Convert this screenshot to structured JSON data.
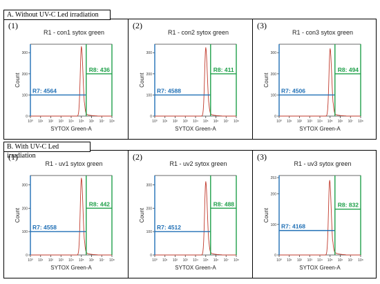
{
  "sections": [
    {
      "label": "A. Without UV-C Led irradiation"
    },
    {
      "label": "B. With UV-C Led irradiation"
    }
  ],
  "colors": {
    "curve": "#c0392b",
    "r7": "#1f6fb5",
    "r8": "#1fa04a"
  },
  "chart_data": [
    {
      "type": "area",
      "panel_number": "(1)",
      "title": "R1 - con1 sytox green",
      "xlabel": "SYTOX Green-A",
      "ylabel": "Count",
      "x_scale": "log",
      "xlim": [
        1,
        100000000
      ],
      "ylim": [
        0,
        340
      ],
      "yticks": [
        "0",
        "100",
        "200",
        "300"
      ],
      "xticks": [
        "10⁰",
        "10¹",
        "10²",
        "10³",
        "10⁴",
        "10⁵",
        "10⁶",
        "10⁷",
        "10⁸"
      ],
      "peak_x": 100000,
      "peak_y": 330,
      "gate_x": 300000,
      "regions": [
        {
          "name": "R7",
          "label": "R7: 4564",
          "value": 4564,
          "level": 100
        },
        {
          "name": "R8",
          "label": "R8: 436",
          "value": 436,
          "level": 200
        }
      ]
    },
    {
      "type": "area",
      "panel_number": "(2)",
      "title": "R1 - con2 sytox green",
      "xlabel": "SYTOX Green-A",
      "ylabel": "Count",
      "x_scale": "log",
      "xlim": [
        1,
        100000000
      ],
      "ylim": [
        0,
        340
      ],
      "yticks": [
        "0",
        "100",
        "200",
        "300"
      ],
      "xticks": [
        "10⁰",
        "10¹",
        "10²",
        "10³",
        "10⁴",
        "10⁵",
        "10⁶",
        "10⁷",
        "10⁸"
      ],
      "peak_x": 100000,
      "peak_y": 325,
      "gate_x": 300000,
      "regions": [
        {
          "name": "R7",
          "label": "R7: 4588",
          "value": 4588,
          "level": 100
        },
        {
          "name": "R8",
          "label": "R8: 411",
          "value": 411,
          "level": 200
        }
      ]
    },
    {
      "type": "area",
      "panel_number": "(3)",
      "title": "R1 - con3 sytox green",
      "xlabel": "SYTOX Green-A",
      "ylabel": "Count",
      "x_scale": "log",
      "xlim": [
        1,
        100000000
      ],
      "ylim": [
        0,
        340
      ],
      "yticks": [
        "0",
        "100",
        "200",
        "300"
      ],
      "xticks": [
        "10⁰",
        "10¹",
        "10²",
        "10³",
        "10⁴",
        "10⁵",
        "10⁶",
        "10⁷",
        "10⁸"
      ],
      "peak_x": 100000,
      "peak_y": 320,
      "gate_x": 300000,
      "regions": [
        {
          "name": "R7",
          "label": "R7: 4506",
          "value": 4506,
          "level": 100
        },
        {
          "name": "R8",
          "label": "R8: 494",
          "value": 494,
          "level": 200
        }
      ]
    },
    {
      "type": "area",
      "panel_number": "(1)",
      "title": "R1 - uv1 sytox green",
      "xlabel": "SYTOX Green-A",
      "ylabel": "Count",
      "x_scale": "log",
      "xlim": [
        1,
        100000000
      ],
      "ylim": [
        0,
        340
      ],
      "yticks": [
        "0",
        "100",
        "200",
        "300"
      ],
      "xticks": [
        "10⁰",
        "10¹",
        "10²",
        "10³",
        "10⁴",
        "10⁵",
        "10⁶",
        "10⁷",
        "10⁸"
      ],
      "peak_x": 100000,
      "peak_y": 330,
      "gate_x": 300000,
      "regions": [
        {
          "name": "R7",
          "label": "R7: 4558",
          "value": 4558,
          "level": 100
        },
        {
          "name": "R8",
          "label": "R8: 442",
          "value": 442,
          "level": 200
        }
      ]
    },
    {
      "type": "area",
      "panel_number": "(2)",
      "title": "R1 - uv2 sytox green",
      "xlabel": "SYTOX Green-A",
      "ylabel": "Count",
      "x_scale": "log",
      "xlim": [
        1,
        100000000
      ],
      "ylim": [
        0,
        340
      ],
      "yticks": [
        "0",
        "100",
        "200",
        "300"
      ],
      "xticks": [
        "10⁰",
        "10¹",
        "10²",
        "10³",
        "10⁴",
        "10⁵",
        "10⁶",
        "10⁷",
        "10⁸"
      ],
      "peak_x": 100000,
      "peak_y": 315,
      "gate_x": 300000,
      "regions": [
        {
          "name": "R7",
          "label": "R7: 4512",
          "value": 4512,
          "level": 100
        },
        {
          "name": "R8",
          "label": "R8: 488",
          "value": 488,
          "level": 200
        }
      ]
    },
    {
      "type": "area",
      "panel_number": "(3)",
      "title": "R1 - uv3 sytox green",
      "xlabel": "SYTOX Green-A",
      "ylabel": "Count",
      "x_scale": "log",
      "xlim": [
        1,
        100000000
      ],
      "ylim": [
        0,
        260
      ],
      "yticks": [
        "0",
        "100",
        "200",
        "253"
      ],
      "xticks": [
        "10⁰",
        "10¹",
        "10²",
        "10³",
        "10⁴",
        "10⁵",
        "10⁶",
        "10⁷",
        "10⁸"
      ],
      "peak_x": 90000,
      "peak_y": 245,
      "gate_x": 300000,
      "regions": [
        {
          "name": "R7",
          "label": "R7: 4168",
          "value": 4168,
          "level": 80
        },
        {
          "name": "R8",
          "label": "R8: 832",
          "value": 832,
          "level": 150
        }
      ]
    }
  ]
}
